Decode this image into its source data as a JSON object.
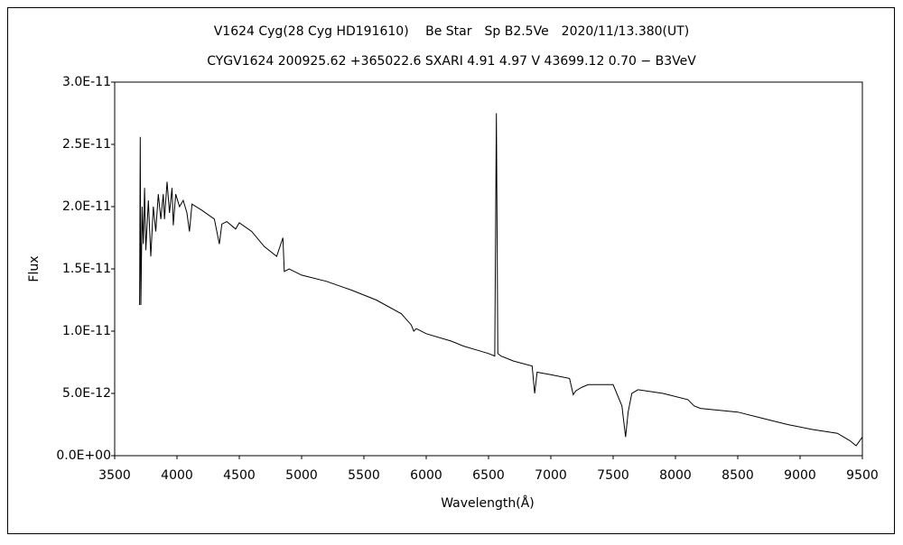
{
  "chart_data": {
    "type": "line",
    "title": "V1624 Cyg(28 Cyg HD191610)　 Be Star　Sp B2.5Ve　2020/11/13.380(UT)",
    "subtitle": "CYGV1624 200925.62 +365022.6 SXARI 4.91 4.97 V 43699.12 0.70 − B3VeV",
    "x_label": "Wavelength(Å)",
    "y_label": "Flux",
    "xlim": [
      3500,
      9500
    ],
    "xticks": [
      3500,
      4000,
      4500,
      5000,
      5500,
      6000,
      6500,
      7000,
      7500,
      8000,
      8500,
      9000,
      9500
    ],
    "ylim": [
      0,
      3e-11
    ],
    "yticks": [
      {
        "value": 0,
        "label": "0.0E+00"
      },
      {
        "value": 5e-12,
        "label": "5.0E-12"
      },
      {
        "value": 1e-11,
        "label": "1.0E-11"
      },
      {
        "value": 1.5e-11,
        "label": "1.5E-11"
      },
      {
        "value": 2e-11,
        "label": "2.0E-11"
      },
      {
        "value": 2.5e-11,
        "label": "2.5E-11"
      },
      {
        "value": 3e-11,
        "label": "3.0E-11"
      }
    ],
    "x": [
      3700,
      3705,
      3710,
      3720,
      3730,
      3740,
      3750,
      3770,
      3790,
      3810,
      3830,
      3850,
      3870,
      3890,
      3900,
      3920,
      3940,
      3960,
      3970,
      3990,
      4020,
      4050,
      4080,
      4100,
      4120,
      4200,
      4300,
      4340,
      4360,
      4400,
      4470,
      4500,
      4600,
      4700,
      4800,
      4850,
      4861,
      4900,
      5000,
      5200,
      5400,
      5600,
      5800,
      5880,
      5900,
      5920,
      6000,
      6200,
      6300,
      6400,
      6500,
      6550,
      6563,
      6575,
      6600,
      6700,
      6850,
      6870,
      6890,
      7000,
      7150,
      7180,
      7200,
      7250,
      7300,
      7500,
      7570,
      7600,
      7620,
      7650,
      7700,
      7900,
      8100,
      8150,
      8200,
      8500,
      8700,
      8900,
      9100,
      9300,
      9400,
      9450,
      9500
    ],
    "series": [
      {
        "name": "Flux",
        "color": "#000000",
        "values": [
          1.21e-11,
          2.56e-11,
          1.21e-11,
          2e-11,
          1.7e-11,
          2.15e-11,
          1.65e-11,
          2.05e-11,
          1.6e-11,
          2e-11,
          1.8e-11,
          2.1e-11,
          1.9e-11,
          2.1e-11,
          1.9e-11,
          2.2e-11,
          1.95e-11,
          2.15e-11,
          1.85e-11,
          2.1e-11,
          2e-11,
          2.05e-11,
          1.95e-11,
          1.8e-11,
          2.02e-11,
          1.97e-11,
          1.9e-11,
          1.7e-11,
          1.86e-11,
          1.88e-11,
          1.82e-11,
          1.87e-11,
          1.8e-11,
          1.68e-11,
          1.6e-11,
          1.75e-11,
          1.48e-11,
          1.5e-11,
          1.45e-11,
          1.4e-11,
          1.33e-11,
          1.25e-11,
          1.14e-11,
          1.05e-11,
          1e-11,
          1.02e-11,
          9.8e-12,
          9.2e-12,
          8.8e-12,
          8.5e-12,
          8.2e-12,
          8e-12,
          2.75e-11,
          8.2e-12,
          8e-12,
          7.6e-12,
          7.2e-12,
          5e-12,
          6.7e-12,
          6.5e-12,
          6.2e-12,
          4.9e-12,
          5.2e-12,
          5.5e-12,
          5.7e-12,
          5.7e-12,
          4e-12,
          1.5e-12,
          3.5e-12,
          5e-12,
          5.3e-12,
          5e-12,
          4.5e-12,
          4e-12,
          3.8e-12,
          3.5e-12,
          3e-12,
          2.5e-12,
          2.1e-12,
          1.8e-12,
          1.2e-12,
          8e-13,
          1.5e-12
        ]
      }
    ]
  }
}
